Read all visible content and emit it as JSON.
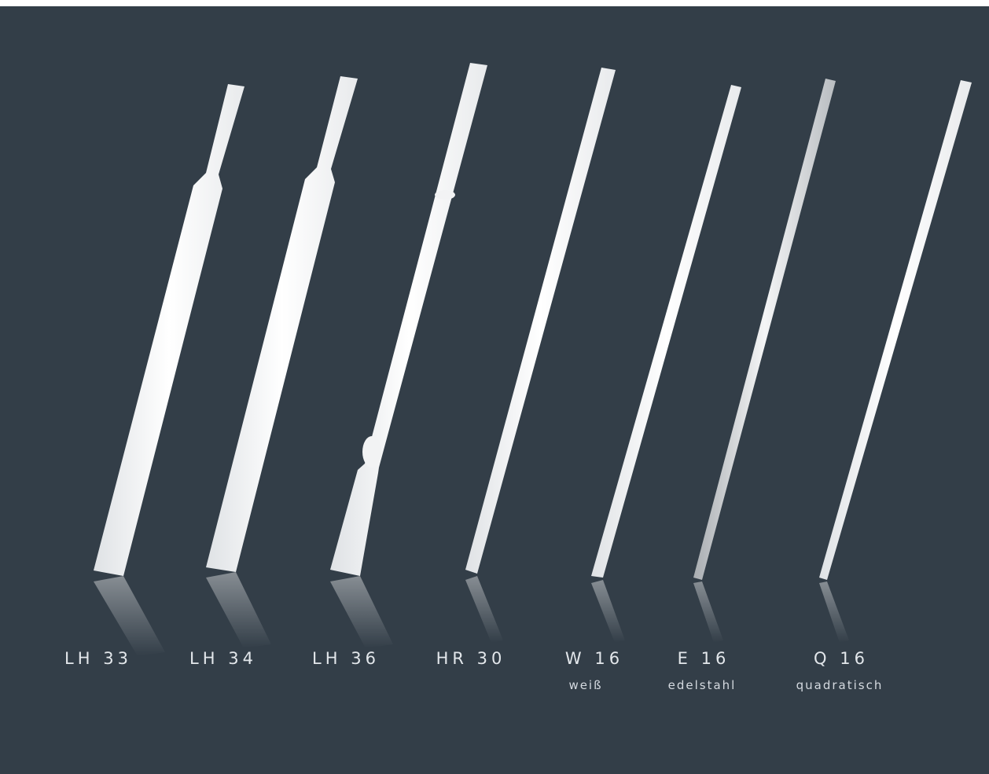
{
  "products": [
    {
      "name": "LH 33"
    },
    {
      "name": "LH 34"
    },
    {
      "name": "LH 36"
    },
    {
      "name": "HR 30"
    },
    {
      "name": "W 16",
      "note": "weiß"
    },
    {
      "name": "E 16",
      "note": "edelstahl"
    },
    {
      "name": "Q 16",
      "note": "quadratisch"
    }
  ]
}
